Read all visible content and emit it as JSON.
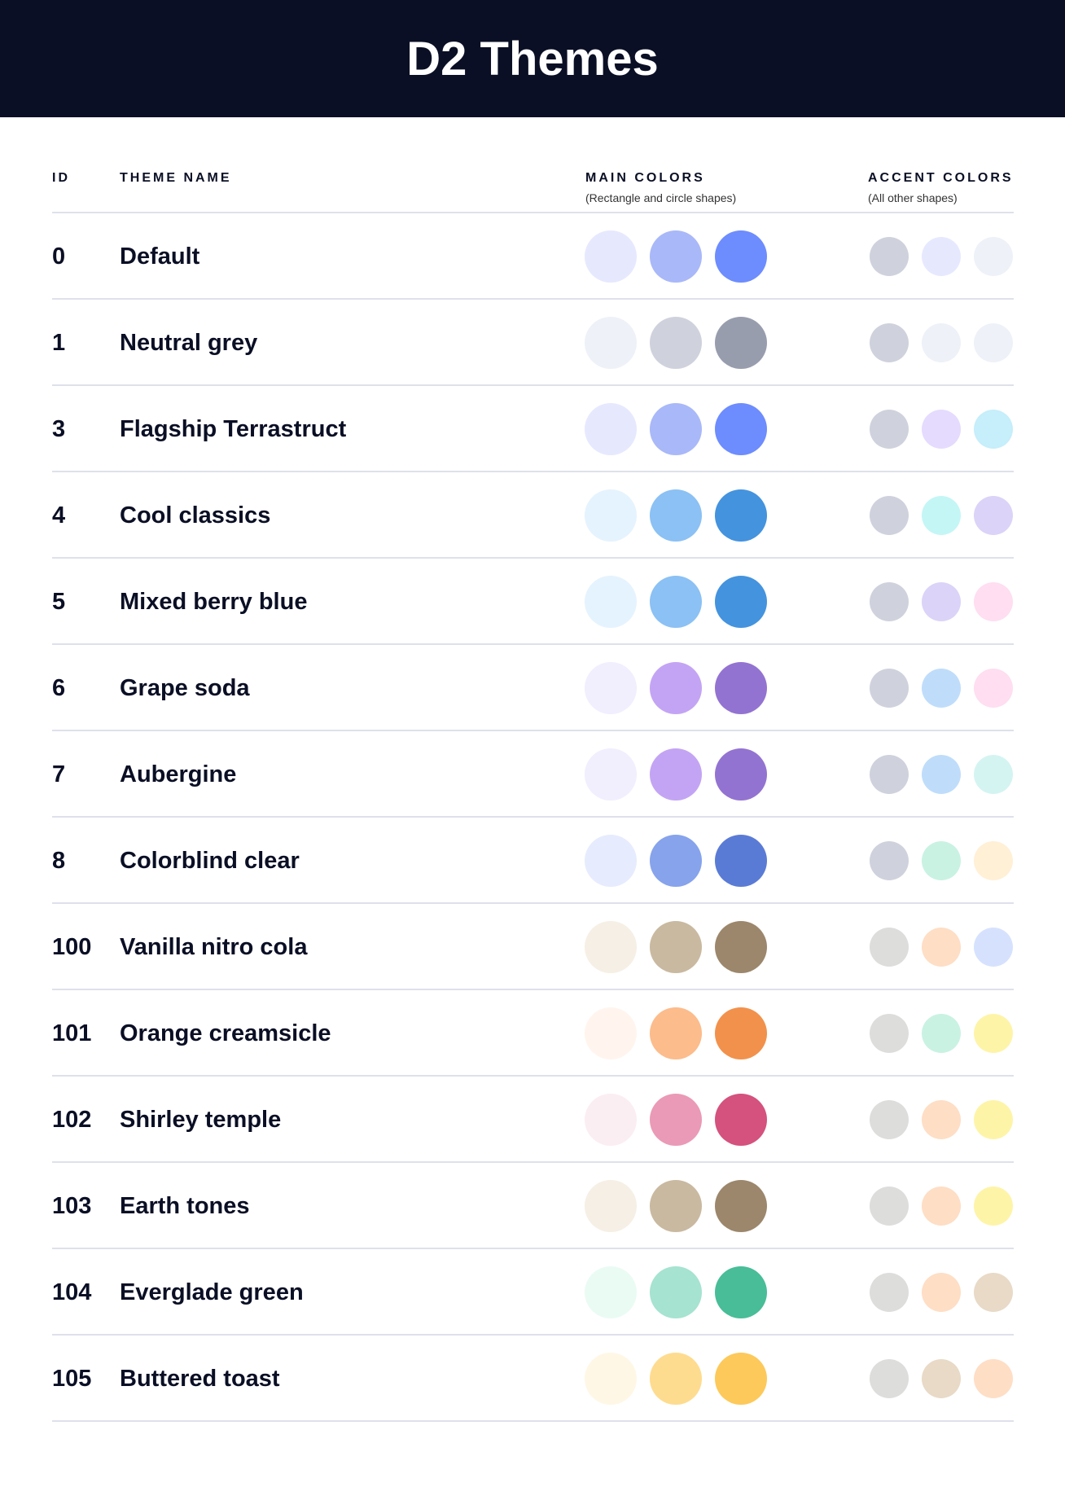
{
  "title": "D2 Themes",
  "columns": {
    "id": "ID",
    "name": "THEME NAME",
    "main": "MAIN COLORS",
    "main_sub": "(Rectangle and circle shapes)",
    "accent": "ACCENT COLORS",
    "accent_sub": "(All other shapes)"
  },
  "themes": [
    {
      "id": "0",
      "name": "Default",
      "main": [
        "#E6E9FE",
        "#A9B8F8",
        "#6D8CFE"
      ],
      "accent": [
        "#CFD2DD",
        "#E6E9FE",
        "#EEF1F8"
      ]
    },
    {
      "id": "1",
      "name": "Neutral grey",
      "main": [
        "#EEF1F8",
        "#CFD2DD",
        "#989DAE"
      ],
      "accent": [
        "#CFD2DD",
        "#EEF1F8",
        "#EEF1F8"
      ]
    },
    {
      "id": "3",
      "name": "Flagship Terrastruct",
      "main": [
        "#E6E9FE",
        "#A9B8F8",
        "#6D8CFE"
      ],
      "accent": [
        "#CFD2DD",
        "#E5DBFE",
        "#C6EEFB"
      ]
    },
    {
      "id": "4",
      "name": "Cool classics",
      "main": [
        "#E5F3FE",
        "#8BC1F4",
        "#4493DE"
      ],
      "accent": [
        "#CFD2DD",
        "#C4F6F6",
        "#DBD3F8"
      ]
    },
    {
      "id": "5",
      "name": "Mixed berry blue",
      "main": [
        "#E5F3FE",
        "#8BC1F4",
        "#4493DE"
      ],
      "accent": [
        "#CFD2DD",
        "#DBD3F8",
        "#FEDEF0"
      ]
    },
    {
      "id": "6",
      "name": "Grape soda",
      "main": [
        "#F1EEFE",
        "#C3A4F4",
        "#9373D1"
      ],
      "accent": [
        "#CFD2DD",
        "#BFDDFB",
        "#FEDEF0"
      ]
    },
    {
      "id": "7",
      "name": "Aubergine",
      "main": [
        "#F1EEFE",
        "#C3A4F4",
        "#9373D1"
      ],
      "accent": [
        "#CFD2DD",
        "#BFDDFB",
        "#D4F4F2"
      ]
    },
    {
      "id": "8",
      "name": "Colorblind clear",
      "main": [
        "#E6ECFE",
        "#86A3EC",
        "#5A7BD5"
      ],
      "accent": [
        "#CFD2DD",
        "#C9F2E3",
        "#FFF0D6"
      ]
    },
    {
      "id": "100",
      "name": "Vanilla nitro cola",
      "main": [
        "#F6EFE5",
        "#C9B9A0",
        "#9C876C"
      ],
      "accent": [
        "#DDDDDC",
        "#FEDEC5",
        "#D6E2FD"
      ]
    },
    {
      "id": "101",
      "name": "Orange creamsicle",
      "main": [
        "#FFF5EE",
        "#FCBC8B",
        "#F2914C"
      ],
      "accent": [
        "#DDDDDC",
        "#C9F2E3",
        "#FEF4A8"
      ]
    },
    {
      "id": "102",
      "name": "Shirley temple",
      "main": [
        "#FBEEF2",
        "#EA9AB6",
        "#D4527D"
      ],
      "accent": [
        "#DDDDDC",
        "#FEDEC5",
        "#FEF4A8"
      ]
    },
    {
      "id": "103",
      "name": "Earth tones",
      "main": [
        "#F6EFE5",
        "#C9B9A0",
        "#9C876C"
      ],
      "accent": [
        "#DDDDDC",
        "#FEDEC5",
        "#FEF4A8"
      ]
    },
    {
      "id": "104",
      "name": "Everglade green",
      "main": [
        "#EAFBF4",
        "#A6E3D1",
        "#48BD98"
      ],
      "accent": [
        "#DDDDDC",
        "#FEDEC5",
        "#E8DAC7"
      ]
    },
    {
      "id": "105",
      "name": "Buttered toast",
      "main": [
        "#FFF7E6",
        "#FEDC8F",
        "#FDC95A"
      ],
      "accent": [
        "#DDDDDC",
        "#E8DAC7",
        "#FEDEC5"
      ]
    }
  ]
}
